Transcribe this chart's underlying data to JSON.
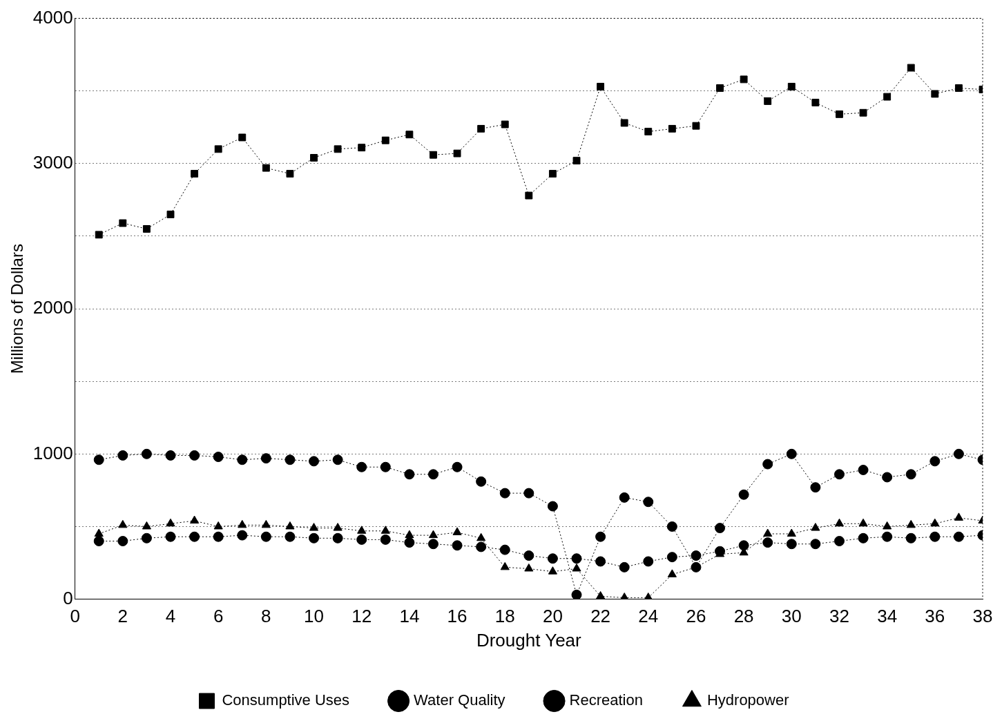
{
  "chart_data": {
    "type": "line",
    "xlabel": "Drought Year",
    "ylabel": "Millions of Dollars",
    "x": [
      1,
      2,
      3,
      4,
      5,
      6,
      7,
      8,
      9,
      10,
      11,
      12,
      13,
      14,
      15,
      16,
      17,
      18,
      19,
      20,
      21,
      22,
      23,
      24,
      25,
      26,
      27,
      28,
      29,
      30,
      31,
      32,
      33,
      34,
      35,
      36,
      37,
      38
    ],
    "xlim": [
      0,
      38
    ],
    "xticks": [
      0,
      2,
      4,
      6,
      8,
      10,
      12,
      14,
      16,
      18,
      20,
      22,
      24,
      26,
      28,
      30,
      32,
      34,
      36,
      38
    ],
    "ylim": [
      0,
      4000
    ],
    "yticks": [
      0,
      {
        "value": 500,
        "label": null
      },
      1000,
      {
        "value": 1500,
        "label": null
      },
      2000,
      {
        "value": 2500,
        "label": null
      },
      3000,
      {
        "value": 3500,
        "label": null
      },
      4000
    ],
    "grid": "y",
    "legend": "bottom",
    "line_style": "dotted",
    "series": [
      {
        "name": "Consumptive Uses",
        "color": "#000000",
        "marker": "square",
        "values": [
          2510,
          2590,
          2550,
          2650,
          2930,
          3100,
          3180,
          2970,
          2930,
          3040,
          3100,
          3110,
          3160,
          3200,
          3060,
          3070,
          3240,
          3270,
          2780,
          2930,
          3020,
          3530,
          3280,
          3220,
          3240,
          3260,
          3520,
          3580,
          3430,
          3530,
          3420,
          3340,
          3350,
          3460,
          3660,
          3480,
          3520,
          3510
        ]
      },
      {
        "name": "Water Quality",
        "color": "#000000",
        "marker": "circle",
        "values": [
          960,
          990,
          1000,
          990,
          990,
          980,
          960,
          970,
          960,
          950,
          960,
          910,
          910,
          860,
          860,
          910,
          810,
          730,
          730,
          640,
          30,
          430,
          700,
          670,
          500,
          220,
          490,
          720,
          930,
          1000,
          770,
          860,
          890,
          840,
          860,
          950,
          1000,
          960
        ]
      },
      {
        "name": "Recreation",
        "color": "#000000",
        "marker": "circle",
        "values": [
          400,
          400,
          420,
          430,
          430,
          430,
          440,
          430,
          430,
          420,
          420,
          410,
          410,
          390,
          380,
          370,
          360,
          340,
          300,
          280,
          280,
          260,
          220,
          260,
          290,
          300,
          330,
          370,
          390,
          380,
          380,
          400,
          420,
          430,
          420,
          430,
          430,
          440
        ]
      },
      {
        "name": "Hydropower",
        "color": "#000000",
        "marker": "triangle",
        "values": [
          450,
          510,
          500,
          520,
          540,
          500,
          510,
          510,
          500,
          490,
          490,
          470,
          470,
          440,
          440,
          460,
          420,
          220,
          210,
          190,
          210,
          20,
          10,
          10,
          170,
          220,
          310,
          320,
          450,
          450,
          490,
          520,
          520,
          500,
          510,
          520,
          560,
          540
        ]
      }
    ]
  }
}
